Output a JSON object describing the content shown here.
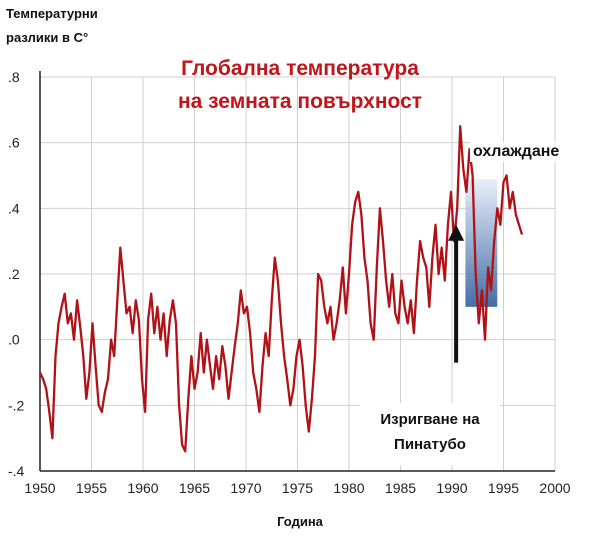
{
  "chart_data": {
    "type": "line",
    "title": "Глобална температура на земната повърхност",
    "title_lines": [
      "Глобална температура",
      "на земната повърхност"
    ],
    "ylabel_lines": [
      "Температурни",
      "разлики в C°"
    ],
    "xlabel": "Година",
    "xlim": [
      1950,
      2000
    ],
    "ylim": [
      -0.4,
      0.8
    ],
    "x_ticks": [
      1950,
      1955,
      1960,
      1965,
      1970,
      1975,
      1980,
      1985,
      1990,
      1995,
      2000
    ],
    "y_ticks": [
      -0.4,
      -0.2,
      0.0,
      0.2,
      0.4,
      0.6,
      0.8
    ],
    "y_tick_labels": [
      "-.4",
      "-.2",
      ".0",
      ".2",
      ".4",
      ".6",
      ".8"
    ],
    "grid": true,
    "series": [
      {
        "color": "#b11217",
        "x": [
          1950.0,
          1950.3,
          1950.6,
          1950.9,
          1951.2,
          1951.5,
          1951.8,
          1952.1,
          1952.4,
          1952.7,
          1953.0,
          1953.3,
          1953.6,
          1953.9,
          1954.2,
          1954.5,
          1954.8,
          1955.1,
          1955.4,
          1955.7,
          1956.0,
          1956.3,
          1956.6,
          1956.9,
          1957.2,
          1957.5,
          1957.8,
          1958.1,
          1958.4,
          1958.7,
          1959.0,
          1959.3,
          1959.6,
          1959.9,
          1960.2,
          1960.5,
          1960.8,
          1961.1,
          1961.4,
          1961.7,
          1962.0,
          1962.3,
          1962.6,
          1962.9,
          1963.2,
          1963.5,
          1963.8,
          1964.1,
          1964.4,
          1964.7,
          1965.0,
          1965.3,
          1965.6,
          1965.9,
          1966.2,
          1966.5,
          1966.8,
          1967.1,
          1967.4,
          1967.7,
          1968.0,
          1968.3,
          1968.6,
          1968.9,
          1969.2,
          1969.5,
          1969.8,
          1970.1,
          1970.4,
          1970.7,
          1971.0,
          1971.3,
          1971.6,
          1971.9,
          1972.2,
          1972.5,
          1972.8,
          1973.1,
          1973.4,
          1973.7,
          1974.0,
          1974.3,
          1974.6,
          1974.9,
          1975.2,
          1975.5,
          1975.8,
          1976.1,
          1976.4,
          1976.7,
          1977.0,
          1977.3,
          1977.6,
          1977.9,
          1978.2,
          1978.5,
          1978.8,
          1979.1,
          1979.4,
          1979.7,
          1980.0,
          1980.3,
          1980.6,
          1980.9,
          1981.2,
          1981.5,
          1981.8,
          1982.1,
          1982.4,
          1982.7,
          1983.0,
          1983.3,
          1983.6,
          1983.9,
          1984.2,
          1984.5,
          1984.8,
          1985.1,
          1985.4,
          1985.7,
          1986.0,
          1986.3,
          1986.6,
          1986.9,
          1987.2,
          1987.5,
          1987.8,
          1988.1,
          1988.4,
          1988.7,
          1989.0,
          1989.3,
          1989.6,
          1989.9,
          1990.2,
          1990.5,
          1990.8,
          1991.1,
          1991.4,
          1991.7,
          1992.0,
          1992.3,
          1992.6,
          1992.9,
          1993.2,
          1993.5,
          1993.8,
          1994.1,
          1994.4,
          1994.7,
          1995.0,
          1995.3,
          1995.6,
          1995.9,
          1996.2,
          1996.5,
          1996.8
        ],
        "values": [
          -0.1,
          -0.12,
          -0.15,
          -0.22,
          -0.3,
          -0.05,
          0.05,
          0.1,
          0.14,
          0.05,
          0.08,
          0.0,
          0.12,
          0.04,
          -0.05,
          -0.18,
          -0.1,
          0.05,
          -0.08,
          -0.2,
          -0.22,
          -0.16,
          -0.12,
          0.0,
          -0.05,
          0.12,
          0.28,
          0.18,
          0.08,
          0.1,
          0.02,
          0.12,
          0.06,
          -0.12,
          -0.22,
          0.06,
          0.14,
          0.02,
          0.1,
          0.0,
          0.08,
          -0.05,
          0.06,
          0.12,
          0.05,
          -0.2,
          -0.32,
          -0.34,
          -0.18,
          -0.05,
          -0.15,
          -0.1,
          0.02,
          -0.1,
          0.0,
          -0.08,
          -0.15,
          -0.05,
          -0.12,
          -0.02,
          -0.08,
          -0.18,
          -0.1,
          -0.02,
          0.05,
          0.15,
          0.08,
          0.1,
          0.02,
          -0.1,
          -0.15,
          -0.22,
          -0.08,
          0.02,
          -0.05,
          0.12,
          0.25,
          0.18,
          0.05,
          -0.05,
          -0.12,
          -0.2,
          -0.15,
          -0.05,
          0.0,
          -0.08,
          -0.2,
          -0.28,
          -0.18,
          -0.05,
          0.2,
          0.18,
          0.1,
          0.05,
          0.1,
          0.0,
          0.05,
          0.12,
          0.22,
          0.08,
          0.2,
          0.35,
          0.42,
          0.45,
          0.38,
          0.25,
          0.18,
          0.05,
          0.0,
          0.22,
          0.4,
          0.3,
          0.18,
          0.1,
          0.2,
          0.08,
          0.05,
          0.18,
          0.1,
          0.05,
          0.12,
          0.02,
          0.18,
          0.3,
          0.25,
          0.22,
          0.1,
          0.25,
          0.35,
          0.2,
          0.28,
          0.18,
          0.35,
          0.45,
          0.3,
          0.4,
          0.65,
          0.52,
          0.45,
          0.58,
          0.5,
          0.2,
          0.05,
          0.15,
          0.0,
          0.22,
          0.15,
          0.3,
          0.4,
          0.35,
          0.48,
          0.5,
          0.4,
          0.45,
          0.38,
          0.35,
          0.32
        ]
      }
    ],
    "cooling_region": {
      "x_start": 1991.3,
      "x_end": 1994.4,
      "y_top": 0.49,
      "label": "охлаждане"
    },
    "eruption_marker": {
      "x": 1990.4,
      "y_from": -0.07,
      "y_to": 0.35,
      "label_lines": [
        "Изригване на",
        "Пинатубо"
      ]
    }
  }
}
